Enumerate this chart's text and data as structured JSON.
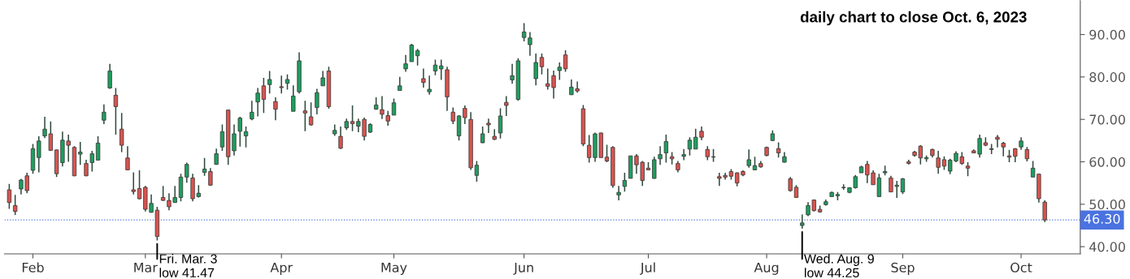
{
  "chart_data": {
    "type": "candlestick",
    "title": "daily chart to close Oct. 6, 2023",
    "categories": [
      null,
      null,
      null,
      null,
      "Feb",
      null,
      null,
      null,
      null,
      null,
      null,
      null,
      null,
      null,
      null,
      null,
      null,
      null,
      null,
      null,
      null,
      null,
      null,
      "Mar",
      null,
      null,
      null,
      null,
      null,
      null,
      null,
      null,
      null,
      null,
      null,
      null,
      null,
      null,
      null,
      null,
      null,
      null,
      null,
      null,
      null,
      null,
      "Apr",
      null,
      null,
      null,
      null,
      null,
      null,
      null,
      null,
      null,
      null,
      null,
      null,
      null,
      null,
      null,
      null,
      null,
      null,
      "May",
      null,
      null,
      null,
      null,
      null,
      null,
      null,
      null,
      null,
      null,
      null,
      null,
      null,
      null,
      null,
      null,
      null,
      null,
      null,
      null,
      null,
      "Jun",
      null,
      null,
      null,
      null,
      null,
      null,
      null,
      null,
      null,
      null,
      null,
      null,
      null,
      null,
      null,
      null,
      null,
      null,
      null,
      null,
      "Jul",
      null,
      null,
      null,
      null,
      null,
      null,
      null,
      null,
      null,
      null,
      null,
      null,
      null,
      null,
      null,
      null,
      null,
      null,
      null,
      "Aug",
      null,
      null,
      null,
      null,
      null,
      null,
      null,
      null,
      null,
      null,
      null,
      null,
      null,
      null,
      null,
      null,
      null,
      null,
      null,
      null,
      null,
      null,
      "Sep",
      null,
      null,
      null,
      null,
      null,
      null,
      null,
      null,
      null,
      null,
      null,
      null,
      null,
      null,
      null,
      null,
      null,
      null,
      null,
      "Oct",
      null,
      null,
      null,
      null
    ],
    "ohlc": [
      [
        53.4,
        54.8,
        48.9,
        50.4
      ],
      [
        49.7,
        52.2,
        47.5,
        48.3
      ],
      [
        53.6,
        56.0,
        52.3,
        55.7
      ],
      [
        56.7,
        57.4,
        52.6,
        53.2
      ],
      [
        58.0,
        64.2,
        57.2,
        63.1
      ],
      [
        61.0,
        66.0,
        57.5,
        64.9
      ],
      [
        66.1,
        70.6,
        65.6,
        67.7
      ],
      [
        66.6,
        69.5,
        62.6,
        62.7
      ],
      [
        62.8,
        62.9,
        56.4,
        57.2
      ],
      [
        59.8,
        67.1,
        58.9,
        65.1
      ],
      [
        64.9,
        66.4,
        60.0,
        63.9
      ],
      [
        63.4,
        63.7,
        56.6,
        56.7
      ],
      [
        61.8,
        64.7,
        59.3,
        62.3
      ],
      [
        59.6,
        60.5,
        56.6,
        56.7
      ],
      [
        59.8,
        62.6,
        57.7,
        61.9
      ],
      [
        60.4,
        66.0,
        60.4,
        64.4
      ],
      [
        69.8,
        73.5,
        68.9,
        71.7
      ],
      [
        77.4,
        83.1,
        77.2,
        81.4
      ],
      [
        75.7,
        77.4,
        66.4,
        73.0
      ],
      [
        67.7,
        71.5,
        62.3,
        63.9
      ],
      [
        60.9,
        63.7,
        58.0,
        58.1
      ],
      [
        53.4,
        57.5,
        52.3,
        53.0
      ],
      [
        53.7,
        58.0,
        51.1,
        51.3
      ],
      [
        54.0,
        54.3,
        48.3,
        48.8
      ],
      [
        48.1,
        52.3,
        48.0,
        50.2
      ],
      [
        48.6,
        49.4,
        41.47,
        42.4
      ],
      [
        51.6,
        54.3,
        50.8,
        50.9
      ],
      [
        50.9,
        52.6,
        48.6,
        49.4
      ],
      [
        50.4,
        54.3,
        50.4,
        51.6
      ],
      [
        51.6,
        57.2,
        50.7,
        56.4
      ],
      [
        56.4,
        59.8,
        55.1,
        59.4
      ],
      [
        56.2,
        57.2,
        50.7,
        51.3
      ],
      [
        51.8,
        54.5,
        51.6,
        52.6
      ],
      [
        57.5,
        60.9,
        56.7,
        58.3
      ],
      [
        57.7,
        58.5,
        54.3,
        54.5
      ],
      [
        59.4,
        63.1,
        59.3,
        61.9
      ],
      [
        63.5,
        68.8,
        62.6,
        67.1
      ],
      [
        72.2,
        72.3,
        59.3,
        61.2
      ],
      [
        62.6,
        68.8,
        61.5,
        66.6
      ],
      [
        67.2,
        70.6,
        63.6,
        70.3
      ],
      [
        66.1,
        68.3,
        63.4,
        67.1
      ],
      [
        70.1,
        74.4,
        69.8,
        71.7
      ],
      [
        74.1,
        77.4,
        70.7,
        76.2
      ],
      [
        77.9,
        79.8,
        71.5,
        74.7
      ],
      [
        78.2,
        81.4,
        76.1,
        79.4
      ],
      [
        74.2,
        75.2,
        69.8,
        72.4
      ],
      [
        77.7,
        80.3,
        76.1,
        77.5
      ],
      [
        78.5,
        80.6,
        77.0,
        79.4
      ],
      [
        71.9,
        78.0,
        71.9,
        75.5
      ],
      [
        76.5,
        85.8,
        76.1,
        83.8
      ],
      [
        72.0,
        74.4,
        67.2,
        71.5
      ],
      [
        70.6,
        74.0,
        68.5,
        68.7
      ],
      [
        72.8,
        77.2,
        71.2,
        76.3
      ],
      [
        77.9,
        81.4,
        77.9,
        79.8
      ],
      [
        81.4,
        82.4,
        72.5,
        73.0
      ],
      [
        66.6,
        68.8,
        66.1,
        67.4
      ],
      [
        66.0,
        68.3,
        63.0,
        63.2
      ],
      [
        68.0,
        70.2,
        67.5,
        69.5
      ],
      [
        69.5,
        73.3,
        67.2,
        69.0
      ],
      [
        68.4,
        70.2,
        67.0,
        69.5
      ],
      [
        70.0,
        70.4,
        65.0,
        66.0
      ],
      [
        67.0,
        69.1,
        66.8,
        68.8
      ],
      [
        72.4,
        75.2,
        72.3,
        73.4
      ],
      [
        72.3,
        75.5,
        70.1,
        71.2
      ],
      [
        70.9,
        72.0,
        68.5,
        69.6
      ],
      [
        71.0,
        74.9,
        71.0,
        73.9
      ],
      [
        76.8,
        80.0,
        76.8,
        77.9
      ],
      [
        81.9,
        85.2,
        81.2,
        83.1
      ],
      [
        83.6,
        87.8,
        83.6,
        87.5
      ],
      [
        85.0,
        86.6,
        82.7,
        86.2
      ],
      [
        79.6,
        82.0,
        77.5,
        78.7
      ],
      [
        76.5,
        80.3,
        75.8,
        77.1
      ],
      [
        81.4,
        84.1,
        80.4,
        82.8
      ],
      [
        81.9,
        84.1,
        79.3,
        82.6
      ],
      [
        81.7,
        82.4,
        72.0,
        75.3
      ],
      [
        71.7,
        72.8,
        68.9,
        69.6
      ],
      [
        66.1,
        71.0,
        65.0,
        70.8
      ],
      [
        72.6,
        73.3,
        68.9,
        70.4
      ],
      [
        70.0,
        71.7,
        58.1,
        58.6
      ],
      [
        56.8,
        60.2,
        55.3,
        59.2
      ],
      [
        64.5,
        68.3,
        64.4,
        66.6
      ],
      [
        69.1,
        70.2,
        66.8,
        68.7
      ],
      [
        66.0,
        67.7,
        65.1,
        65.3
      ],
      [
        66.8,
        72.6,
        65.5,
        70.8
      ],
      [
        74.0,
        75.5,
        70.8,
        73.3
      ],
      [
        79.3,
        83.1,
        78.4,
        80.3
      ],
      [
        74.7,
        84.4,
        74.4,
        83.8
      ],
      [
        89.3,
        92.7,
        88.4,
        90.6
      ],
      [
        87.6,
        90.6,
        85.0,
        89.2
      ],
      [
        79.6,
        85.5,
        78.0,
        83.4
      ],
      [
        84.6,
        85.5,
        80.6,
        82.4
      ],
      [
        78.4,
        82.0,
        77.0,
        77.8
      ],
      [
        80.3,
        81.5,
        74.9,
        77.5
      ],
      [
        81.5,
        83.4,
        79.3,
        82.3
      ],
      [
        85.2,
        86.3,
        81.2,
        81.9
      ],
      [
        75.8,
        79.4,
        75.8,
        77.6
      ],
      [
        77.2,
        78.9,
        76.3,
        76.7
      ],
      [
        72.5,
        73.4,
        63.7,
        64.2
      ],
      [
        63.9,
        66.3,
        59.8,
        61.0
      ],
      [
        61.0,
        66.9,
        60.0,
        66.6
      ],
      [
        66.8,
        66.9,
        61.0,
        61.0
      ],
      [
        61.1,
        64.0,
        59.9,
        60.2
      ],
      [
        63.4,
        63.7,
        53.9,
        54.4
      ],
      [
        52.2,
        54.3,
        50.9,
        52.8
      ],
      [
        54.2,
        57.4,
        53.0,
        55.6
      ],
      [
        56.1,
        61.4,
        56.1,
        61.4
      ],
      [
        61.4,
        61.8,
        57.2,
        59.3
      ],
      [
        59.9,
        60.2,
        54.3,
        55.6
      ],
      [
        58.5,
        59.9,
        58.0,
        58.1
      ],
      [
        56.1,
        61.2,
        56.0,
        60.5
      ],
      [
        60.7,
        63.7,
        59.3,
        61.7
      ],
      [
        62.1,
        66.4,
        59.8,
        64.8
      ],
      [
        61.2,
        62.3,
        59.4,
        60.7
      ],
      [
        59.6,
        60.2,
        57.5,
        58.1
      ],
      [
        61.3,
        63.0,
        60.4,
        61.7
      ],
      [
        63.0,
        65.8,
        61.5,
        65.1
      ],
      [
        63.0,
        67.8,
        63.0,
        65.8
      ],
      [
        67.2,
        68.3,
        65.1,
        65.8
      ],
      [
        62.9,
        63.7,
        60.4,
        61.2
      ],
      [
        61.1,
        63.0,
        60.0,
        61.2
      ],
      [
        56.5,
        57.4,
        54.3,
        56.1
      ],
      [
        56.8,
        57.4,
        55.8,
        56.4
      ],
      [
        57.7,
        58.3,
        55.8,
        56.6
      ],
      [
        57.4,
        57.5,
        54.2,
        55.0
      ],
      [
        57.7,
        58.0,
        56.6,
        56.9
      ],
      [
        59.1,
        62.9,
        58.6,
        60.5
      ],
      [
        58.1,
        61.2,
        58.0,
        59.1
      ],
      [
        59.6,
        60.2,
        58.6,
        58.8
      ],
      [
        63.4,
        63.6,
        61.3,
        61.5
      ],
      [
        65.0,
        67.4,
        64.9,
        66.6
      ],
      [
        63.1,
        64.6,
        61.0,
        62.1
      ],
      [
        59.9,
        62.3,
        59.8,
        61.2
      ],
      [
        56.0,
        56.4,
        53.0,
        53.2
      ],
      [
        54.0,
        54.5,
        51.5,
        51.6
      ],
      [
        45.0,
        47.6,
        44.25,
        45.6
      ],
      [
        47.5,
        50.5,
        47.2,
        49.7
      ],
      [
        51.0,
        51.1,
        48.3,
        48.5
      ],
      [
        48.8,
        49.7,
        48.0,
        48.2
      ],
      [
        49.9,
        51.1,
        49.7,
        50.6
      ],
      [
        51.8,
        53.0,
        51.8,
        52.8
      ],
      [
        52.0,
        52.9,
        50.9,
        52.3
      ],
      [
        53.9,
        54.7,
        53.4,
        54.0
      ],
      [
        52.8,
        54.0,
        52.6,
        53.9
      ],
      [
        53.9,
        56.9,
        53.7,
        56.5
      ],
      [
        57.4,
        59.1,
        57.4,
        58.8
      ],
      [
        59.4,
        60.2,
        55.0,
        56.9
      ],
      [
        57.4,
        58.0,
        54.6,
        54.6
      ],
      [
        51.8,
        57.2,
        51.8,
        56.2
      ],
      [
        57.4,
        59.1,
        56.8,
        57.7
      ],
      [
        56.2,
        56.7,
        52.9,
        52.9
      ],
      [
        54.2,
        55.5,
        51.5,
        54.5
      ],
      [
        52.9,
        56.2,
        52.4,
        56.0
      ],
      [
        60.0,
        60.5,
        59.4,
        59.6
      ],
      [
        62.3,
        62.6,
        61.2,
        61.5
      ],
      [
        63.7,
        63.9,
        59.4,
        60.9
      ],
      [
        60.7,
        61.5,
        60.0,
        61.0
      ],
      [
        62.9,
        63.1,
        61.0,
        61.5
      ],
      [
        60.9,
        62.6,
        57.2,
        58.7
      ],
      [
        60.5,
        61.3,
        58.1,
        59.0
      ],
      [
        57.8,
        60.7,
        57.1,
        60.4
      ],
      [
        60.2,
        62.5,
        59.9,
        62.0
      ],
      [
        61.2,
        62.3,
        59.3,
        59.6
      ],
      [
        59.0,
        59.9,
        56.6,
        58.5
      ],
      [
        62.6,
        62.9,
        62.0,
        62.1
      ],
      [
        61.8,
        66.4,
        61.0,
        65.5
      ],
      [
        64.5,
        65.8,
        63.7,
        63.9
      ],
      [
        62.9,
        64.2,
        61.8,
        63.1
      ],
      [
        65.8,
        66.3,
        63.4,
        65.3
      ],
      [
        64.4,
        64.7,
        61.3,
        63.5
      ],
      [
        61.4,
        62.8,
        59.9,
        61.1
      ],
      [
        63.1,
        63.2,
        59.9,
        61.3
      ],
      [
        63.5,
        65.8,
        62.8,
        64.9
      ],
      [
        62.9,
        63.5,
        60.1,
        60.7
      ],
      [
        56.4,
        60.2,
        56.4,
        58.5
      ],
      [
        57.1,
        57.2,
        50.4,
        51.3
      ],
      [
        50.5,
        50.9,
        45.8,
        46.3
      ]
    ],
    "colors": [
      "#d9534f",
      "#d9534f",
      "#1e9e5e",
      "#d9534f",
      "#1e9e5e",
      "#1e9e5e",
      "#1e9e5e",
      "#d9534f",
      "#d9534f",
      "#1e9e5e",
      "#d9534f",
      "#d9534f",
      "#1e9e5e",
      "#d9534f",
      "#1e9e5e",
      "#1e9e5e",
      "#1e9e5e",
      "#1e9e5e",
      "#d9534f",
      "#d9534f",
      "#d9534f",
      "#d9534f",
      "#d9534f",
      "#d9534f",
      "#1e9e5e",
      "#d9534f",
      "#d9534f",
      "#d9534f",
      "#1e9e5e",
      "#1e9e5e",
      "#1e9e5e",
      "#d9534f",
      "#1e9e5e",
      "#1e9e5e",
      "#d9534f",
      "#1e9e5e",
      "#1e9e5e",
      "#d9534f",
      "#1e9e5e",
      "#1e9e5e",
      "#1e9e5e",
      "#1e9e5e",
      "#1e9e5e",
      "#d9534f",
      "#1e9e5e",
      "#d9534f",
      "#d9534f",
      "#1e9e5e",
      "#1e9e5e",
      "#1e9e5e",
      "#d9534f",
      "#d9534f",
      "#1e9e5e",
      "#1e9e5e",
      "#d9534f",
      "#1e9e5e",
      "#d9534f",
      "#1e9e5e",
      "#d9534f",
      "#1e9e5e",
      "#d9534f",
      "#1e9e5e",
      "#1e9e5e",
      "#d9534f",
      "#d9534f",
      "#1e9e5e",
      "#1e9e5e",
      "#1e9e5e",
      "#1e9e5e",
      "#1e9e5e",
      "#d9534f",
      "#1e9e5e",
      "#1e9e5e",
      "#1e9e5e",
      "#d9534f",
      "#d9534f",
      "#1e9e5e",
      "#d9534f",
      "#d9534f",
      "#1e9e5e",
      "#1e9e5e",
      "#d9534f",
      "#d9534f",
      "#1e9e5e",
      "#d9534f",
      "#1e9e5e",
      "#1e9e5e",
      "#1e9e5e",
      "#1e9e5e",
      "#1e9e5e",
      "#d9534f",
      "#d9534f",
      "#d9534f",
      "#1e9e5e",
      "#d9534f",
      "#1e9e5e",
      "#d9534f",
      "#d9534f",
      "#d9534f",
      "#1e9e5e",
      "#d9534f",
      "#d9534f",
      "#d9534f",
      "#1e9e5e",
      "#1e9e5e",
      "#1e9e5e",
      "#d9534f",
      "#d9534f",
      "#d9534f",
      "#1e9e5e",
      "#1e9e5e",
      "#1e9e5e",
      "#d9534f",
      "#d9534f",
      "#1e9e5e",
      "#1e9e5e",
      "#1e9e5e",
      "#d9534f",
      "#d9534f",
      "#1e9e5e",
      "#d9534f",
      "#d9534f",
      "#d9534f",
      "#d9534f",
      "#d9534f",
      "#1e9e5e",
      "#1e9e5e",
      "#d9534f",
      "#d9534f",
      "#1e9e5e",
      "#d9534f",
      "#1e9e5e",
      "#d9534f",
      "#d9534f",
      "#1e9e5e",
      "#1e9e5e",
      "#d9534f",
      "#d9534f",
      "#1e9e5e",
      "#1e9e5e",
      "#1e9e5e",
      "#1e9e5e",
      "#1e9e5e",
      "#1e9e5e",
      "#1e9e5e",
      "#d9534f",
      "#d9534f",
      "#1e9e5e",
      "#1e9e5e",
      "#d9534f",
      "#1e9e5e",
      "#1e9e5e",
      "#d9534f",
      "#d9534f",
      "#d9534f",
      "#1e9e5e",
      "#d9534f",
      "#d9534f",
      "#d9534f",
      "#1e9e5e",
      "#1e9e5e",
      "#d9534f",
      "#d9534f",
      "#d9534f",
      "#1e9e5e",
      "#d9534f",
      "#1e9e5e",
      "#d9534f",
      "#d9534f",
      "#d9534f",
      "#d9534f",
      "#1e9e5e",
      "#d9534f",
      "#1e9e5e",
      "#d9534f",
      "#d9534f"
    ],
    "ylim": [
      38.3,
      98
    ],
    "yticks": [
      {
        "value": 40,
        "label": "40.00"
      },
      {
        "value": 50,
        "label": "50.00"
      },
      {
        "value": 60,
        "label": "60.00"
      },
      {
        "value": 70,
        "label": "70.00"
      },
      {
        "value": 80,
        "label": "80.00"
      },
      {
        "value": 90,
        "label": "90.00"
      }
    ],
    "ref_lines": [
      {
        "axis": "y",
        "value": 46.3,
        "label": "46.30",
        "color": "#4a72e0",
        "line_style": "dotted"
      }
    ],
    "annotations": [
      "Fri. Mar. 3\nlow 41.47",
      "Wed. Aug. 9\nlow 44.25"
    ],
    "grid": false,
    "legend": false
  }
}
